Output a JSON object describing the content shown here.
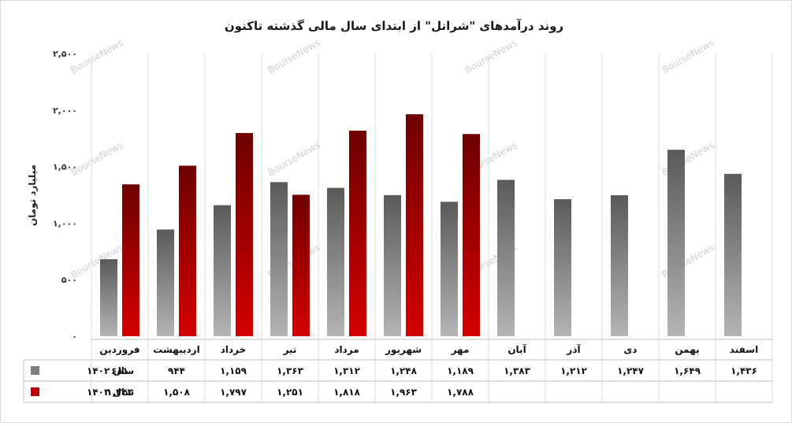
{
  "chart_data": {
    "type": "bar",
    "title": "روند درآمدهای \"شرانل\" از ابتدای سال مالی گذشته تاکنون",
    "ylabel": "میلیارد تومان",
    "ylim": [
      0,
      2500
    ],
    "yticks": [
      0,
      500,
      1000,
      1500,
      2000,
      2500
    ],
    "ytick_labels": [
      "۰",
      "۵۰۰",
      "۱,۰۰۰",
      "۱,۵۰۰",
      "۲,۰۰۰",
      "۲,۵۰۰"
    ],
    "grid": "vertical-category-lines",
    "categories": [
      "فروردین",
      "اردیبهشت",
      "خرداد",
      "تیر",
      "مرداد",
      "شهریور",
      "مهر",
      "آبان",
      "آذر",
      "دی",
      "بهمن",
      "اسفند"
    ],
    "series": [
      {
        "name": "سال ۱۴۰۲",
        "color": "#7f7f7f",
        "values": [
          681,
          944,
          1159,
          1363,
          1312,
          1248,
          1189,
          1383,
          1212,
          1247,
          1649,
          1436
        ],
        "labels": [
          "۶۸۱",
          "۹۴۴",
          "۱,۱۵۹",
          "۱,۳۶۳",
          "۱,۳۱۲",
          "۱,۲۴۸",
          "۱,۱۸۹",
          "۱,۳۸۳",
          "۱,۲۱۲",
          "۱,۲۴۷",
          "۱,۶۴۹",
          "۱,۴۳۶"
        ]
      },
      {
        "name": "سال ۱۴۰۳",
        "color": "#c00000",
        "values": [
          1343,
          1508,
          1797,
          1251,
          1818,
          1963,
          1788,
          null,
          null,
          null,
          null,
          null
        ],
        "labels": [
          "۱,۳۴۳",
          "۱,۵۰۸",
          "۱,۷۹۷",
          "۱,۲۵۱",
          "۱,۸۱۸",
          "۱,۹۶۳",
          "۱,۷۸۸",
          "",
          "",
          "",
          "",
          ""
        ]
      }
    ],
    "legend": "data-table-left",
    "watermark": "BourseNews"
  }
}
